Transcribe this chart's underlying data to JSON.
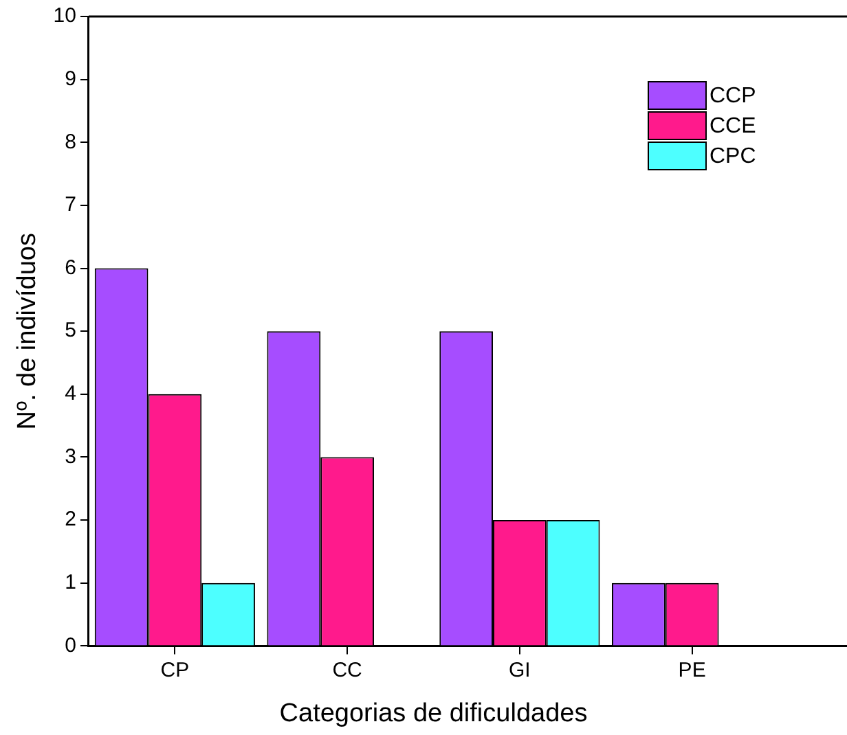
{
  "chart_data": {
    "type": "bar",
    "xlabel": "Categorias de dificuldades",
    "ylabel": "Nº. de indivíduos",
    "categories": [
      "CP",
      "CC",
      "GI",
      "PE"
    ],
    "series": [
      {
        "name": "CCP",
        "color": "#a64dff",
        "values": [
          6,
          5,
          5,
          1
        ]
      },
      {
        "name": "CCE",
        "color": "#ff1a8c",
        "values": [
          4,
          3,
          2,
          1
        ]
      },
      {
        "name": "CPC",
        "color": "#4dffff",
        "values": [
          1,
          0,
          2,
          0
        ]
      }
    ],
    "ylim": [
      0,
      10
    ],
    "yticks": [
      0,
      1,
      2,
      3,
      4,
      5,
      6,
      7,
      8,
      9,
      10
    ],
    "grid": false,
    "legend": "top right"
  }
}
